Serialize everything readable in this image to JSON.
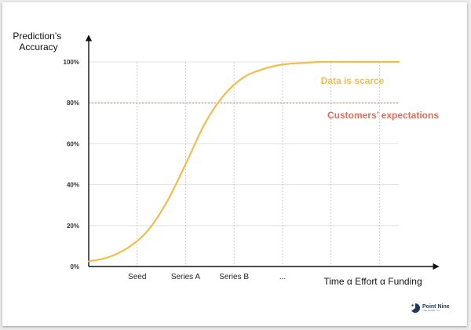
{
  "chart_data": {
    "type": "line",
    "xlabel": "Time α Effort α Funding",
    "ylabel_lines": [
      "Prediction’s",
      "Accuracy"
    ],
    "y_ticks": [
      "0%",
      "20%",
      "40%",
      "60%",
      "80%",
      "100%"
    ],
    "ylim": [
      0,
      100
    ],
    "x_categories": [
      "Seed",
      "Series A",
      "Series B",
      "..."
    ],
    "xlim": [
      0,
      16
    ],
    "x_gridlines": [
      2.5,
      5,
      7.5,
      10,
      12.5,
      15
    ],
    "grid": true,
    "series": [
      {
        "color": "#f2bd4b",
        "x": [
          0,
          1,
          2,
          3,
          4,
          5,
          6,
          7,
          8,
          9,
          10,
          11,
          12,
          13,
          14,
          15,
          16
        ],
        "y": [
          2.5,
          4.5,
          9,
          17,
          31,
          50,
          70,
          84,
          92.5,
          96.5,
          98.7,
          99.5,
          100,
          100,
          100,
          100,
          100
        ]
      }
    ],
    "reference_line": {
      "y": 80,
      "color": "#e66a55",
      "style": "dotted"
    },
    "annotations": [
      {
        "text": "Data is scarce",
        "color": "#f2bd4b"
      },
      {
        "text": "Customers’ expectations",
        "color": "#e66a55"
      }
    ]
  },
  "brand": {
    "name": "Point Nine",
    "tagline": "THE ANGEL VC",
    "logo_color": "#1d3a5c"
  }
}
